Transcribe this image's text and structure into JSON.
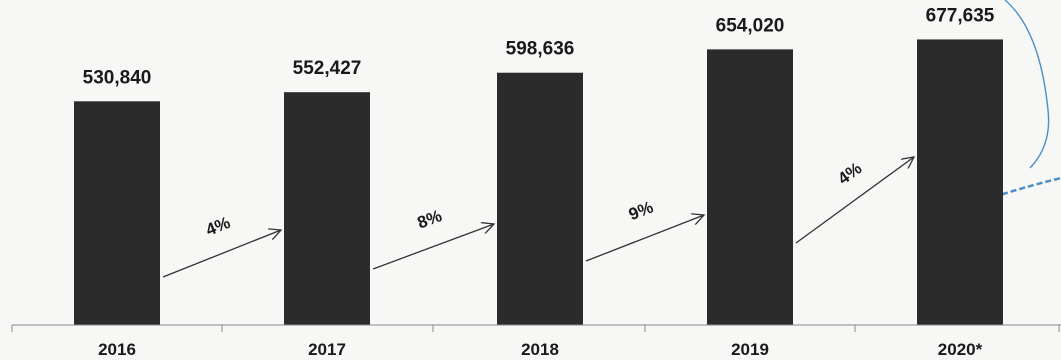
{
  "chart_data": {
    "type": "bar",
    "categories": [
      "2016",
      "2017",
      "2018",
      "2019",
      "2020*"
    ],
    "values": [
      530840,
      552427,
      598636,
      654020,
      677635
    ],
    "value_labels": [
      "530,840",
      "552,427",
      "598,636",
      "654,020",
      "677,635"
    ],
    "growth_labels": [
      "4%",
      "8%",
      "9%",
      "4%"
    ],
    "ylim": [
      0,
      700000
    ],
    "grid": false,
    "legend": "none",
    "colors": {
      "bar": "#2b2b2b",
      "arrow": "#333333",
      "accent_line": "#4a90c8"
    }
  }
}
